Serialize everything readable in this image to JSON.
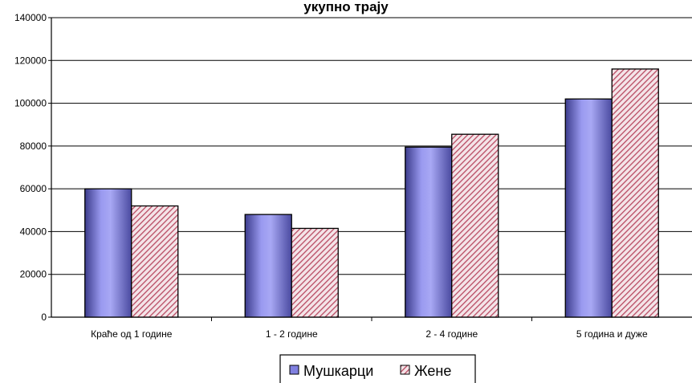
{
  "chart_data": {
    "type": "bar",
    "title": "",
    "visible_title_fragment": "укупно трају",
    "xlabel": "",
    "ylabel": "",
    "categories": [
      "Краће од 1 године",
      "1 - 2 године",
      "2 - 4 године",
      "5 година и дуже"
    ],
    "series": [
      {
        "name": "Мушкарци",
        "values": [
          60000,
          48000,
          79500,
          102000
        ],
        "color": "#7B7BDD",
        "pattern": "solid"
      },
      {
        "name": "Жене",
        "values": [
          52000,
          41500,
          85500,
          116000
        ],
        "color": "#B84A62",
        "pattern": "diagonal-hatch"
      }
    ],
    "ylim": [
      0,
      140000
    ],
    "yticks": [
      0,
      20000,
      40000,
      60000,
      80000,
      100000,
      120000,
      140000
    ],
    "grid": true,
    "legend_position": "bottom"
  }
}
